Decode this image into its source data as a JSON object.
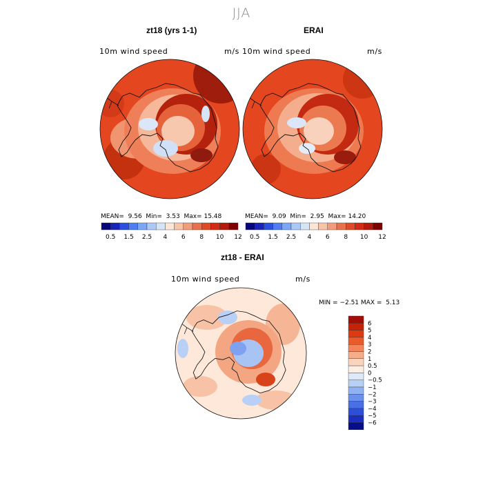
{
  "season_title": "JJA",
  "panels": [
    {
      "title": "zt18 (yrs 1-1)",
      "variable_label": "10m wind speed",
      "units": "m/s",
      "stats": {
        "mean_label": "MEAN=",
        "mean": "9.56",
        "min_label": "Min=",
        "min": "3.53",
        "max_label": "Max=",
        "max": "15.48"
      }
    },
    {
      "title": "ERAI",
      "variable_label": "10m wind speed",
      "units": "m/s",
      "stats": {
        "mean_label": "MEAN=",
        "mean": "9.09",
        "min_label": "Min=",
        "min": "2.95",
        "max_label": "Max=",
        "max": "14.20"
      }
    }
  ],
  "difference_panel": {
    "title": "zt18 - ERAI",
    "variable_label": "10m wind speed",
    "units": "m/s",
    "min_label": "MIN =",
    "min": "−2.51",
    "max_label": "MAX =",
    "max": "5.13"
  },
  "colorbar_abs": {
    "tick_labels": [
      "0.5",
      "1.5",
      "2.5",
      "4",
      "6",
      "8",
      "10",
      "12"
    ],
    "colors": [
      "#06067a",
      "#1a23b8",
      "#2b50e0",
      "#4f7cf0",
      "#7aa6f5",
      "#abc8f7",
      "#d6e4f7",
      "#fbe6d8",
      "#f8c4a7",
      "#f19c7a",
      "#e8714e",
      "#df4a28",
      "#d32c14",
      "#b41a0c",
      "#800000"
    ]
  },
  "colorbar_diff": {
    "tick_labels": [
      "6",
      "5",
      "4",
      "3",
      "2",
      "1",
      "0.5",
      "0",
      "−0.5",
      "−1",
      "−2",
      "−3",
      "−4",
      "−5",
      "−6"
    ],
    "colors": [
      "#a30d05",
      "#c62208",
      "#dc3b12",
      "#e85c2c",
      "#f2865a",
      "#f6ad8a",
      "#fad4bc",
      "#fdeee2",
      "#dde9f8",
      "#b9d0f6",
      "#90b2f3",
      "#6c90ed",
      "#4a70e5",
      "#2d4fd8",
      "#1a2ec0",
      "#060c8a"
    ]
  },
  "map_palette": {
    "ocean_abs": "#e4471f",
    "ocean_abs_dark": "#c4310f",
    "ice_dark": "#8f1a0e",
    "ice_light": "#fbe0d0",
    "ice_blue": "#cfe0f7",
    "diff_bg": "#fde8da",
    "diff_pos": "#f2a07c",
    "diff_neg": "#8fb3f2",
    "coast": "#111111"
  }
}
